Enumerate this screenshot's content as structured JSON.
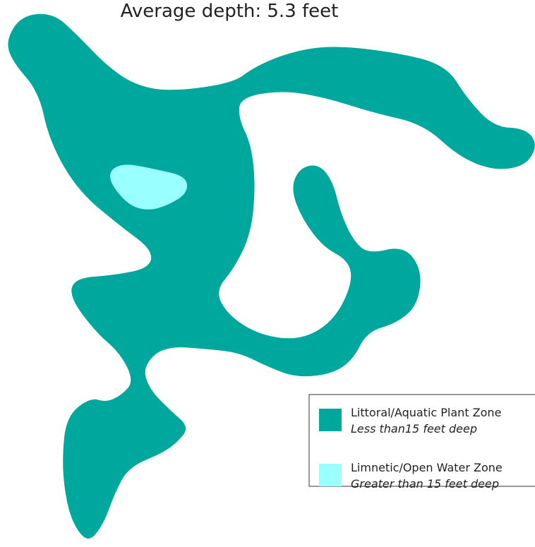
{
  "title": "Average depth:  5.3 feet",
  "legend": [
    {
      "label": "Littoral/Aquatic Plant Zone",
      "description": "Less than15 feet deep",
      "color": "#00a79d"
    },
    {
      "label": "Limnetic/Open Water Zone",
      "description": "Greater than 15 feet deep",
      "color": "#99ffff"
    }
  ]
}
